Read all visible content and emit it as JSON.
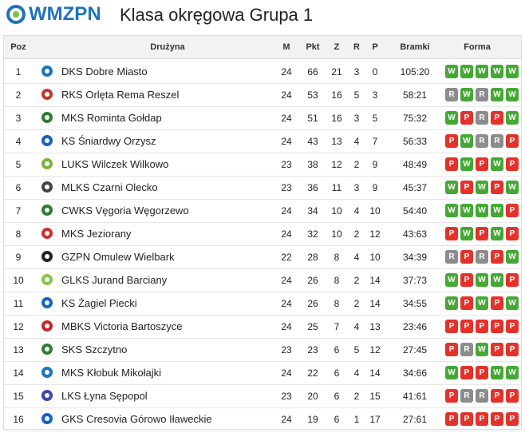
{
  "header": {
    "logo": "WMZPN",
    "title": "Klasa okręgowa Grupa 1"
  },
  "table": {
    "columns": [
      "Poz",
      "Drużyna",
      "M",
      "Pkt",
      "Z",
      "R",
      "P",
      "Bramki",
      "Forma"
    ],
    "rows": [
      [
        "1",
        "DKS Dobre Miasto",
        "24",
        "66",
        "21",
        "3",
        "0",
        "105:20",
        [
          "W",
          "W",
          "W",
          "W",
          "W"
        ]
      ],
      [
        "2",
        "RKS Orlęta Rema Reszel",
        "24",
        "53",
        "16",
        "5",
        "3",
        "58:21",
        [
          "R",
          "W",
          "R",
          "W",
          "W"
        ]
      ],
      [
        "3",
        "MKS Rominta Gołdap",
        "24",
        "51",
        "16",
        "3",
        "5",
        "75:32",
        [
          "W",
          "P",
          "R",
          "P",
          "W"
        ]
      ],
      [
        "4",
        "KS Śniardwy Orzysz",
        "24",
        "43",
        "13",
        "4",
        "7",
        "56:33",
        [
          "P",
          "W",
          "R",
          "R",
          "P"
        ]
      ],
      [
        "5",
        "LUKS Wilczek Wilkowo",
        "23",
        "38",
        "12",
        "2",
        "9",
        "48:49",
        [
          "P",
          "W",
          "P",
          "W",
          "P"
        ]
      ],
      [
        "6",
        "MLKS Czarni Olecko",
        "23",
        "36",
        "11",
        "3",
        "9",
        "45:37",
        [
          "W",
          "P",
          "W",
          "P",
          "W"
        ]
      ],
      [
        "7",
        "CWKS Vęgoria Węgorzewo",
        "24",
        "34",
        "10",
        "4",
        "10",
        "54:40",
        [
          "W",
          "W",
          "W",
          "W",
          "P"
        ]
      ],
      [
        "8",
        "MKS Jeziorany",
        "24",
        "32",
        "10",
        "2",
        "12",
        "43:63",
        [
          "P",
          "W",
          "P",
          "W",
          "P"
        ]
      ],
      [
        "9",
        "GZPN Omulew Wielbark",
        "22",
        "28",
        "8",
        "4",
        "10",
        "34:39",
        [
          "R",
          "P",
          "R",
          "P",
          "W"
        ]
      ],
      [
        "10",
        "GLKS Jurand Barciany",
        "24",
        "26",
        "8",
        "2",
        "14",
        "37:73",
        [
          "W",
          "P",
          "W",
          "W",
          "P"
        ]
      ],
      [
        "11",
        "KS Żagiel Piecki",
        "24",
        "26",
        "8",
        "2",
        "14",
        "34:55",
        [
          "W",
          "P",
          "W",
          "P",
          "W"
        ]
      ],
      [
        "12",
        "MBKS Victoria Bartoszyce",
        "24",
        "25",
        "7",
        "4",
        "13",
        "23:46",
        [
          "P",
          "P",
          "P",
          "P",
          "P"
        ]
      ],
      [
        "13",
        "SKS Szczytno",
        "23",
        "23",
        "6",
        "5",
        "12",
        "27:45",
        [
          "P",
          "R",
          "W",
          "P",
          "P"
        ]
      ],
      [
        "14",
        "MKS Kłobuk Mikołajki",
        "24",
        "22",
        "6",
        "4",
        "14",
        "34:66",
        [
          "W",
          "P",
          "P",
          "W",
          "W"
        ]
      ],
      [
        "15",
        "LKS Łyna Sępopol",
        "23",
        "20",
        "6",
        "2",
        "15",
        "41:61",
        [
          "P",
          "R",
          "R",
          "P",
          "P"
        ]
      ],
      [
        "16",
        "GKS Cresovia Górowo Iławeckie",
        "24",
        "19",
        "6",
        "1",
        "17",
        "27:61",
        [
          "P",
          "P",
          "P",
          "P",
          "P"
        ]
      ]
    ]
  }
}
